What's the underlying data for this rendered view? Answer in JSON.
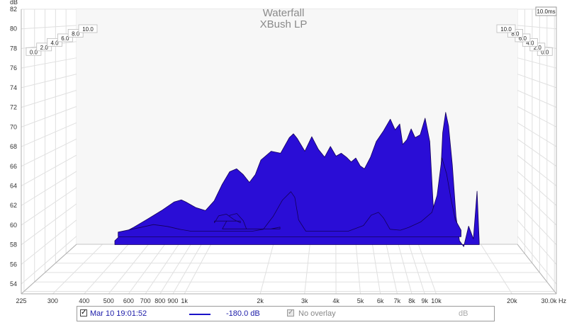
{
  "chart_data": {
    "type": "area",
    "title": "Waterfall",
    "subtitle": "XBush LP",
    "ylabel": "dB",
    "xlabel": "",
    "x_unit": "Hz",
    "x_scale": "log",
    "xlim": [
      225,
      30000
    ],
    "ylim": [
      53,
      82
    ],
    "x_ticks": [
      225,
      300,
      400,
      500,
      600,
      700,
      800,
      900,
      1000,
      2000,
      3000,
      4000,
      5000,
      6000,
      7000,
      8000,
      9000,
      10000,
      20000,
      30000
    ],
    "x_tick_labels": [
      "225",
      "300",
      "400",
      "500",
      "600",
      "700",
      "800",
      "900",
      "1k",
      "2k",
      "3k",
      "4k",
      "5k",
      "6k",
      "7k",
      "8k",
      "9k",
      "10k",
      "20k",
      "30.0k Hz"
    ],
    "y_ticks": [
      54,
      56,
      58,
      60,
      62,
      64,
      66,
      68,
      70,
      72,
      74,
      76,
      78,
      80,
      82
    ],
    "time_labels": [
      "0.0",
      "2.0",
      "4.0",
      "6.0",
      "8.0",
      "10.0"
    ],
    "time_end_label": "10.0ms",
    "grid": true,
    "fill_color": "#2a0dd6",
    "edge_color": "#14005a",
    "series": [
      {
        "name": "Mar 10 19:01:52",
        "time_ms": 0.0,
        "points": [
          [
            520,
            58.2
          ],
          [
            560,
            59.0
          ],
          [
            620,
            59.6
          ],
          [
            700,
            60.4
          ],
          [
            800,
            61.3
          ],
          [
            900,
            62.2
          ],
          [
            960,
            62.4
          ],
          [
            1000,
            62.2
          ],
          [
            1100,
            61.6
          ],
          [
            1200,
            61.3
          ],
          [
            1300,
            62.3
          ],
          [
            1400,
            64.0
          ],
          [
            1500,
            65.3
          ],
          [
            1600,
            65.6
          ],
          [
            1700,
            65.0
          ],
          [
            1800,
            64.2
          ],
          [
            1900,
            65.0
          ],
          [
            2000,
            66.5
          ],
          [
            2200,
            67.4
          ],
          [
            2400,
            67.2
          ],
          [
            2600,
            68.8
          ],
          [
            2700,
            69.2
          ],
          [
            2800,
            68.7
          ],
          [
            3000,
            67.4
          ],
          [
            3200,
            68.9
          ],
          [
            3400,
            67.6
          ],
          [
            3600,
            66.8
          ],
          [
            3800,
            67.9
          ],
          [
            4000,
            66.9
          ],
          [
            4200,
            67.2
          ],
          [
            4400,
            66.8
          ],
          [
            4600,
            66.3
          ],
          [
            4800,
            66.7
          ],
          [
            5000,
            65.9
          ],
          [
            5200,
            65.6
          ],
          [
            5500,
            66.8
          ],
          [
            5800,
            68.4
          ],
          [
            6200,
            69.5
          ],
          [
            6600,
            70.7
          ],
          [
            6900,
            69.6
          ],
          [
            7200,
            70.2
          ],
          [
            7400,
            68.1
          ],
          [
            7700,
            68.6
          ],
          [
            8000,
            69.7
          ],
          [
            8300,
            68.8
          ],
          [
            8700,
            69.1
          ],
          [
            9100,
            70.8
          ],
          [
            9500,
            68.4
          ],
          [
            9800,
            62.0
          ],
          [
            10100,
            58.8
          ],
          [
            10400,
            62.6
          ],
          [
            10700,
            69.3
          ],
          [
            11000,
            71.4
          ],
          [
            11300,
            70.0
          ],
          [
            11700,
            66.0
          ],
          [
            12100,
            60.7
          ],
          [
            12500,
            58.2
          ],
          [
            13000,
            57.6
          ],
          [
            13600,
            59.7
          ],
          [
            14200,
            58.4
          ],
          [
            14700,
            63.3
          ],
          [
            15000,
            58.0
          ]
        ]
      },
      {
        "name": "Mar 10 19:01:52",
        "time_ms": 2.0,
        "points": [
          [
            500,
            58.3
          ],
          [
            620,
            58.8
          ],
          [
            700,
            59.1
          ],
          [
            800,
            58.9
          ],
          [
            900,
            58.6
          ],
          [
            1000,
            58.4
          ],
          [
            1800,
            58.4
          ],
          [
            2000,
            58.6
          ],
          [
            2200,
            60.0
          ],
          [
            2400,
            61.7
          ],
          [
            2600,
            62.6
          ],
          [
            2700,
            62.0
          ],
          [
            2800,
            59.6
          ],
          [
            3000,
            58.4
          ],
          [
            4500,
            58.4
          ],
          [
            5200,
            59.0
          ],
          [
            5600,
            60.1
          ],
          [
            6000,
            60.4
          ],
          [
            6300,
            59.8
          ],
          [
            6700,
            58.6
          ],
          [
            7400,
            58.5
          ],
          [
            8000,
            58.8
          ],
          [
            9000,
            59.4
          ],
          [
            10000,
            60.4
          ],
          [
            10500,
            62.2
          ],
          [
            11000,
            66.2
          ],
          [
            11500,
            64.5
          ],
          [
            12000,
            61.8
          ],
          [
            12500,
            59.6
          ],
          [
            13200,
            58.5
          ]
        ]
      },
      {
        "name": "Mar 10 19:01:52",
        "time_ms": 4.0,
        "points": [
          [
            1300,
            57.8
          ],
          [
            1400,
            59.3
          ],
          [
            1500,
            59.5
          ],
          [
            1600,
            58.7
          ],
          [
            1650,
            57.8
          ],
          [
            2100,
            57.8
          ],
          [
            2300,
            58.0
          ]
        ]
      },
      {
        "name": "Mar 10 19:01:52",
        "time_ms": 6.0,
        "points": [
          [
            1150,
            57.6
          ],
          [
            1200,
            58.4
          ],
          [
            1300,
            58.6
          ],
          [
            1400,
            58.0
          ],
          [
            1500,
            57.6
          ]
        ]
      }
    ]
  },
  "legend": {
    "checkbox_mark": "✓",
    "series_label": "Mar 10 19:01:52",
    "value_label": "-180.0 dB",
    "overlay_label": "No overlay",
    "unit_label": "dB"
  }
}
